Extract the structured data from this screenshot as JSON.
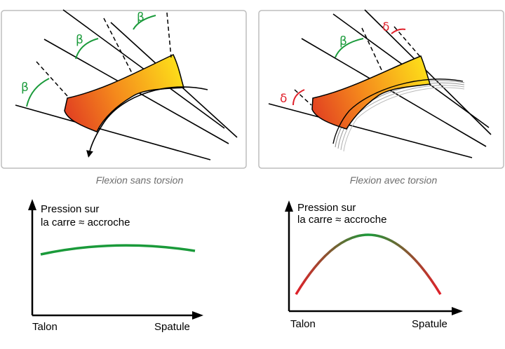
{
  "panels": [
    {
      "caption": "Flexion sans torsion",
      "angles": [
        "β",
        "β",
        "β"
      ]
    },
    {
      "caption": "Flexion avec torsion",
      "angles": [
        "β",
        "δ",
        "δ"
      ]
    }
  ],
  "graphs": [
    {
      "ylabel_line1": "Pression sur",
      "ylabel_line2": "la carre ≈ accroche",
      "xlabel_left": "Talon",
      "xlabel_right": "Spatule",
      "curve_shape": "flat",
      "curve_color": "#1a9a3a"
    },
    {
      "ylabel_line1": "Pression sur",
      "ylabel_line2": "la carre ≈ accroche",
      "xlabel_left": "Talon",
      "xlabel_right": "Spatule",
      "curve_shape": "arch",
      "gradient": [
        "#e0202a",
        "#1a9a3a",
        "#e0202a"
      ]
    }
  ],
  "colors": {
    "beta": "#1a9a3a",
    "delta": "#e0202a",
    "ski_warm": "#e03a22",
    "ski_mid": "#f07a1e",
    "ski_cool": "#fdd414"
  }
}
